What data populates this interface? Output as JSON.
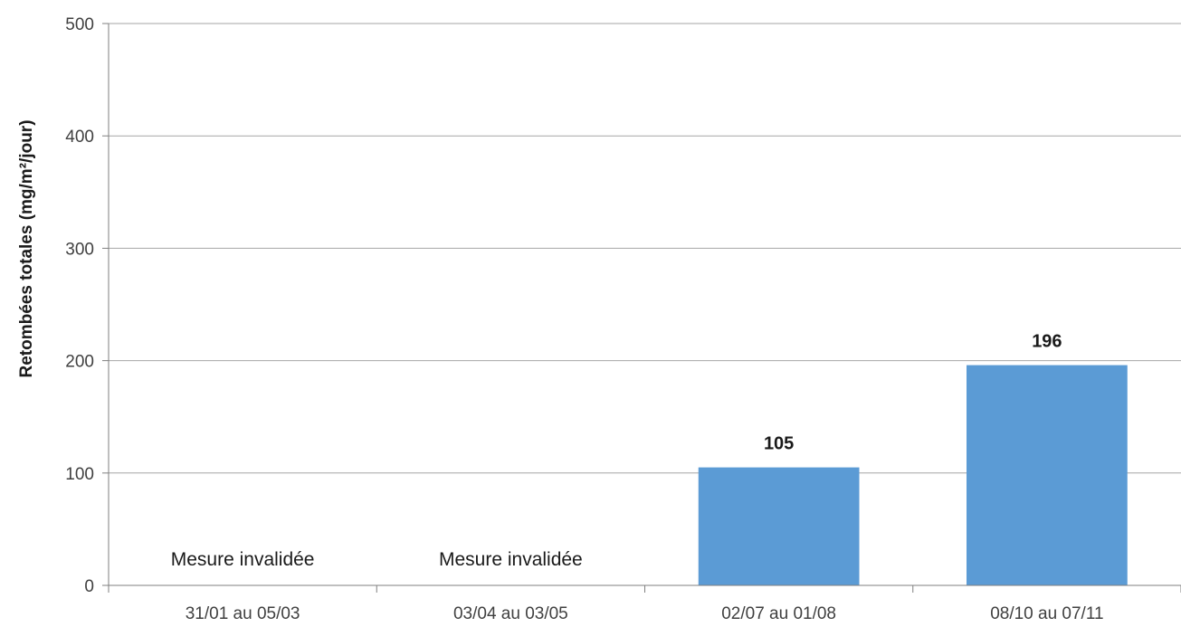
{
  "chart_data": {
    "type": "bar",
    "title": "",
    "xlabel": "",
    "ylabel": "Retombées totales (mg/m²/jour)",
    "ylim": [
      0,
      500
    ],
    "yticks": [
      0,
      100,
      200,
      300,
      400,
      500
    ],
    "grid": true,
    "legend": "none",
    "bar_color": "#5b9bd5",
    "categories": [
      "31/01 au 05/03",
      "03/04 au 03/05",
      "02/07 au 01/08",
      "08/10 au 07/11"
    ],
    "values": [
      null,
      null,
      105,
      196
    ],
    "data_labels": [
      "",
      "",
      "105",
      "196"
    ],
    "annotations": [
      "Mesure invalidée",
      "Mesure invalidée",
      "",
      ""
    ]
  }
}
